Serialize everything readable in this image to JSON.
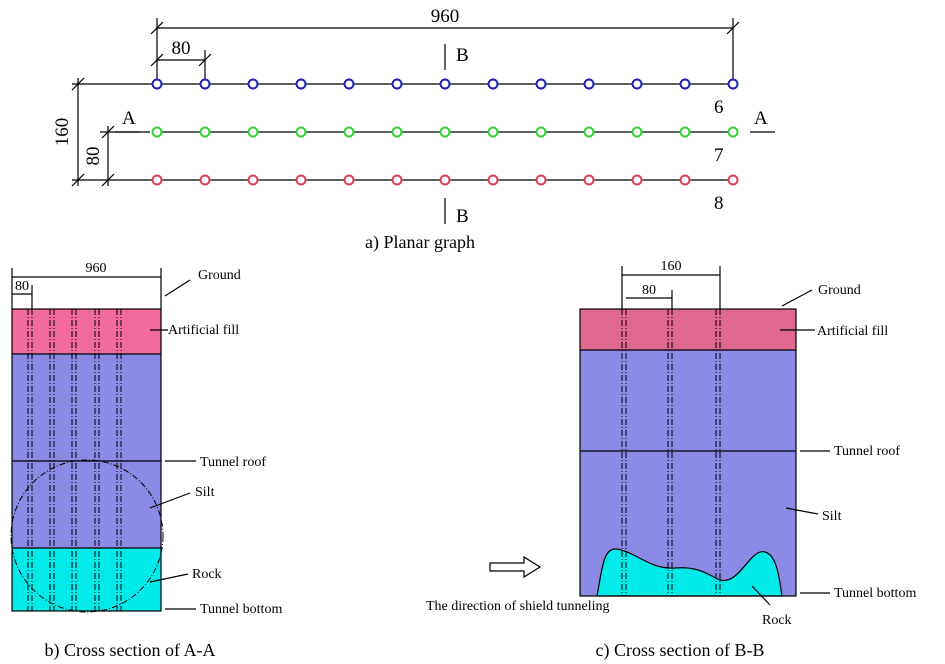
{
  "planar": {
    "dim_total": "960",
    "dim_spacing": "80",
    "section_b_top": "B",
    "section_b_bottom": "B",
    "dim_rows_total": "160",
    "dim_rows_spacing": "80",
    "section_a_left": "A",
    "section_a_right": "A",
    "row_labels": [
      "6",
      "7",
      "8"
    ],
    "caption": "a) Planar graph"
  },
  "section_aa": {
    "dim_total": "960",
    "dim_spacing": "80",
    "labels": {
      "ground": "Ground",
      "fill": "Artificial fill",
      "roof": "Tunnel roof",
      "silt": "Silt",
      "rock": "Rock",
      "bottom": "Tunnel bottom"
    },
    "caption": "b) Cross section of A-A"
  },
  "section_bb": {
    "dim_total": "160",
    "dim_spacing": "80",
    "labels": {
      "ground": "Ground",
      "fill": "Artificial fill",
      "roof": "Tunnel roof",
      "silt": "Silt",
      "bottom": "Tunnel bottom",
      "rock": "Rock",
      "direction": "The direction of shield tunneling"
    },
    "caption": "c) Cross section of B-B"
  }
}
